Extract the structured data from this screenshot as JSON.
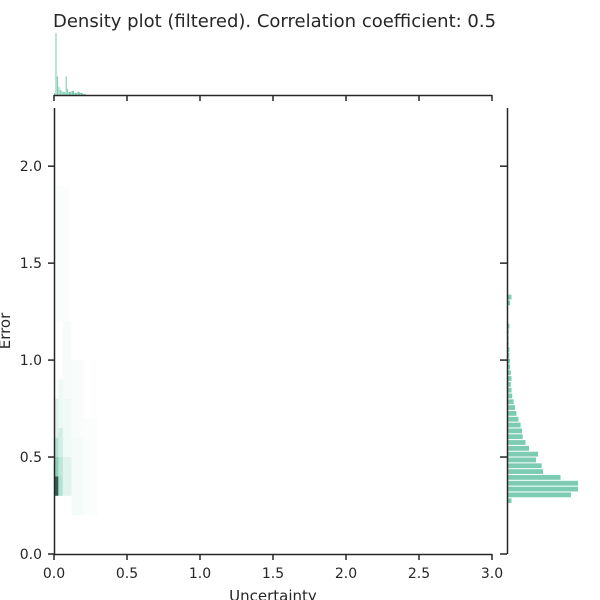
{
  "chart_data": {
    "type": "heatmap",
    "title": "Density plot (filtered). Correlation coefficient: 0.5",
    "xlabel": "Uncertainty",
    "ylabel": "Error",
    "xlim": [
      0,
      3.0
    ],
    "ylim": [
      0,
      2.3
    ],
    "x_ticks": [
      "0.0",
      "0.5",
      "1.0",
      "1.5",
      "2.0",
      "2.5",
      "3.0"
    ],
    "y_ticks": [
      "0.0",
      "0.5",
      "1.0",
      "1.5",
      "2.0"
    ],
    "grid": false,
    "colors": {
      "marginal": "#66c2a5",
      "density_dark": "#1b4d3e"
    },
    "joint_density": [
      {
        "x0": 0.0,
        "x1": 0.03,
        "y0": 0.3,
        "y1": 0.4,
        "level": 0.95
      },
      {
        "x0": 0.0,
        "x1": 0.03,
        "y0": 0.4,
        "y1": 0.5,
        "level": 0.55
      },
      {
        "x0": 0.0,
        "x1": 0.03,
        "y0": 0.5,
        "y1": 0.6,
        "level": 0.35
      },
      {
        "x0": 0.0,
        "x1": 0.03,
        "y0": 0.6,
        "y1": 0.8,
        "level": 0.15
      },
      {
        "x0": 0.03,
        "x1": 0.06,
        "y0": 0.3,
        "y1": 0.4,
        "level": 0.35
      },
      {
        "x0": 0.03,
        "x1": 0.06,
        "y0": 0.4,
        "y1": 0.5,
        "level": 0.3
      },
      {
        "x0": 0.03,
        "x1": 0.06,
        "y0": 0.5,
        "y1": 0.65,
        "level": 0.2
      },
      {
        "x0": 0.03,
        "x1": 0.06,
        "y0": 0.65,
        "y1": 0.9,
        "level": 0.08
      },
      {
        "x0": 0.06,
        "x1": 0.12,
        "y0": 0.3,
        "y1": 0.5,
        "level": 0.14
      },
      {
        "x0": 0.06,
        "x1": 0.12,
        "y0": 0.5,
        "y1": 0.8,
        "level": 0.07
      },
      {
        "x0": 0.06,
        "x1": 0.12,
        "y0": 0.8,
        "y1": 1.2,
        "level": 0.04
      },
      {
        "x0": 0.12,
        "x1": 0.2,
        "y0": 0.2,
        "y1": 0.6,
        "level": 0.05
      },
      {
        "x0": 0.12,
        "x1": 0.2,
        "y0": 0.6,
        "y1": 1.0,
        "level": 0.03
      },
      {
        "x0": 0.2,
        "x1": 0.3,
        "y0": 0.2,
        "y1": 0.7,
        "level": 0.02
      },
      {
        "x0": 0.0,
        "x1": 0.1,
        "y0": 1.2,
        "y1": 1.9,
        "level": 0.02
      }
    ],
    "x_marginal": {
      "bins": [
        0.0,
        0.01,
        0.02,
        0.03,
        0.04,
        0.05,
        0.06,
        0.07,
        0.08,
        0.09,
        0.1,
        0.12,
        0.14,
        0.16,
        0.18,
        0.2,
        0.22
      ],
      "values": [
        2,
        60,
        18,
        8,
        5,
        4,
        3,
        3,
        18,
        6,
        3,
        4,
        2,
        3,
        2,
        1
      ]
    },
    "y_marginal": {
      "bins": [
        0.26,
        0.29,
        0.32,
        0.35,
        0.38,
        0.41,
        0.44,
        0.47,
        0.5,
        0.53,
        0.56,
        0.59,
        0.62,
        0.65,
        0.68,
        0.71,
        0.74,
        0.77,
        0.8,
        0.83,
        0.86,
        0.89,
        0.92,
        0.95,
        0.98,
        1.01,
        1.04,
        1.07,
        1.1,
        1.13,
        1.16,
        1.19,
        1.22,
        1.25,
        1.28,
        1.31,
        1.34
      ],
      "values": [
        0.05,
        0.9,
        1.0,
        1.0,
        0.75,
        0.5,
        0.48,
        0.4,
        0.43,
        0.3,
        0.25,
        0.21,
        0.2,
        0.18,
        0.15,
        0.12,
        0.1,
        0.08,
        0.06,
        0.05,
        0.04,
        0.05,
        0.04,
        0.03,
        0.03,
        0.02,
        0.02,
        0.01,
        0.01,
        0.01,
        0.02,
        0.0,
        0.0,
        0.0,
        0.03,
        0.05
      ]
    }
  }
}
